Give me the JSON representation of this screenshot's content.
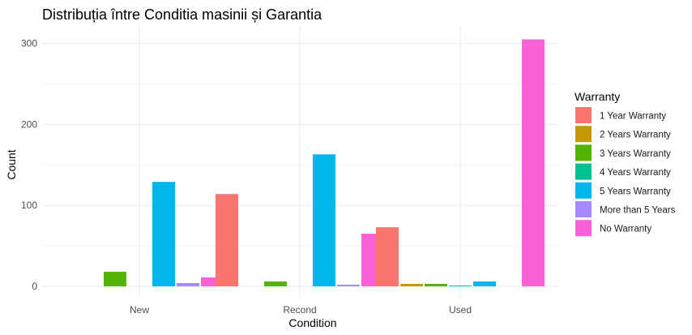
{
  "chart_data": {
    "type": "bar",
    "title": "Distribuția între Conditia masinii și Garantia",
    "xlabel": "Condition",
    "ylabel": "Count",
    "ylim": [
      0,
      310
    ],
    "yticks": [
      0,
      100,
      200,
      300
    ],
    "grid": true,
    "legend": {
      "title": "Warranty",
      "position": "right"
    },
    "categories": [
      "New",
      "Recond",
      "Used"
    ],
    "series": [
      {
        "name": "1 Year Warranty",
        "color": "#F8766D",
        "values": [
          0,
          114,
          73
        ]
      },
      {
        "name": "2 Years Warranty",
        "color": "#C49A00",
        "values": [
          0,
          0,
          3
        ]
      },
      {
        "name": "3 Years Warranty",
        "color": "#53B400",
        "values": [
          18,
          6,
          3
        ]
      },
      {
        "name": "4 Years Warranty",
        "color": "#00C094",
        "values": [
          0,
          0,
          1
        ]
      },
      {
        "name": "5 Years Warranty",
        "color": "#00B6EB",
        "values": [
          129,
          163,
          6
        ]
      },
      {
        "name": "More than 5 Years",
        "color": "#A58AFF",
        "values": [
          4,
          2,
          0
        ]
      },
      {
        "name": "No Warranty",
        "color": "#FB61D7",
        "values": [
          11,
          65,
          305
        ]
      }
    ]
  }
}
